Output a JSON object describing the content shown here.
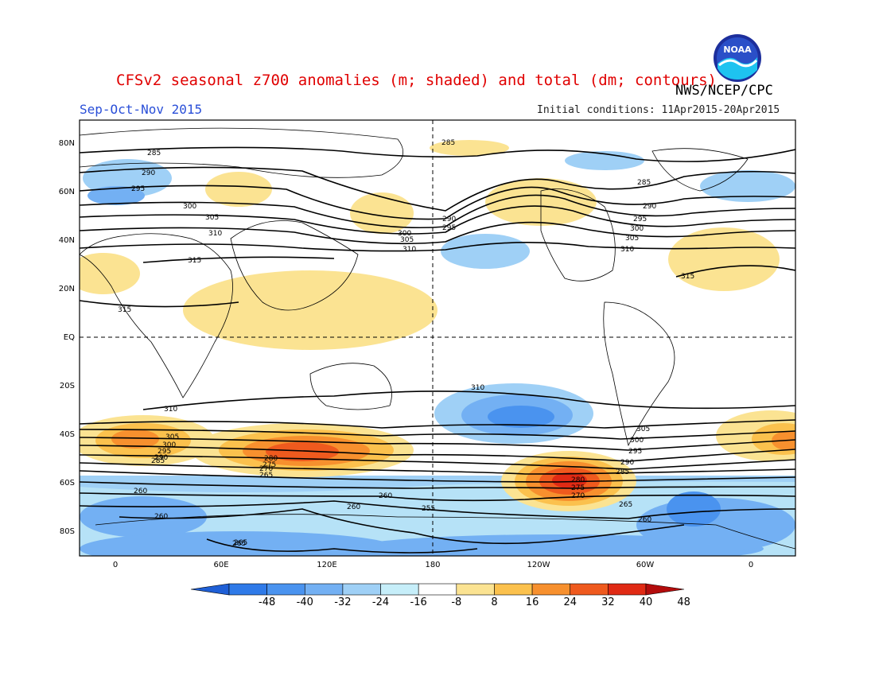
{
  "header": {
    "title": "CFSv2 seasonal z700 anomalies (m; shaded) and total (dm; contours)",
    "agency": "NWS/NCEP/CPC",
    "period": "Sep-Oct-Nov 2015",
    "initial_conditions": "Initial conditions: 11Apr2015-20Apr2015",
    "logo_text": "NOAA"
  },
  "map": {
    "lat_labels": [
      "80N",
      "60N",
      "40N",
      "20N",
      "EQ",
      "20S",
      "40S",
      "60S",
      "80S"
    ],
    "lon_labels": [
      "0",
      "60E",
      "120E",
      "180",
      "120W",
      "60W",
      "0"
    ],
    "contour_labels": [
      "285",
      "290",
      "295",
      "300",
      "305",
      "310",
      "315",
      "315",
      "310",
      "305",
      "300",
      "295",
      "290",
      "285",
      "280",
      "275",
      "270",
      "265",
      "260",
      "255",
      "265",
      "260",
      "285",
      "290",
      "295",
      "300",
      "305",
      "310",
      "285",
      "290",
      "295",
      "300",
      "305",
      "310",
      "315",
      "310",
      "305",
      "300",
      "295",
      "290",
      "285",
      "280",
      "275",
      "270",
      "265",
      "260",
      "260",
      "265",
      "260"
    ]
  },
  "colorbar": {
    "ticks": [
      "-48",
      "-40",
      "-32",
      "-24",
      "-16",
      "-8",
      "8",
      "16",
      "24",
      "32",
      "40",
      "48"
    ],
    "colors": [
      "#1f5fd6",
      "#2f7ae8",
      "#4a93ef",
      "#73b0f3",
      "#9fd0f6",
      "#c6eef9",
      "#ffffff",
      "#fbe392",
      "#fbc14d",
      "#f7902e",
      "#ef5a1e",
      "#e02a14",
      "#b30c0c"
    ]
  }
}
